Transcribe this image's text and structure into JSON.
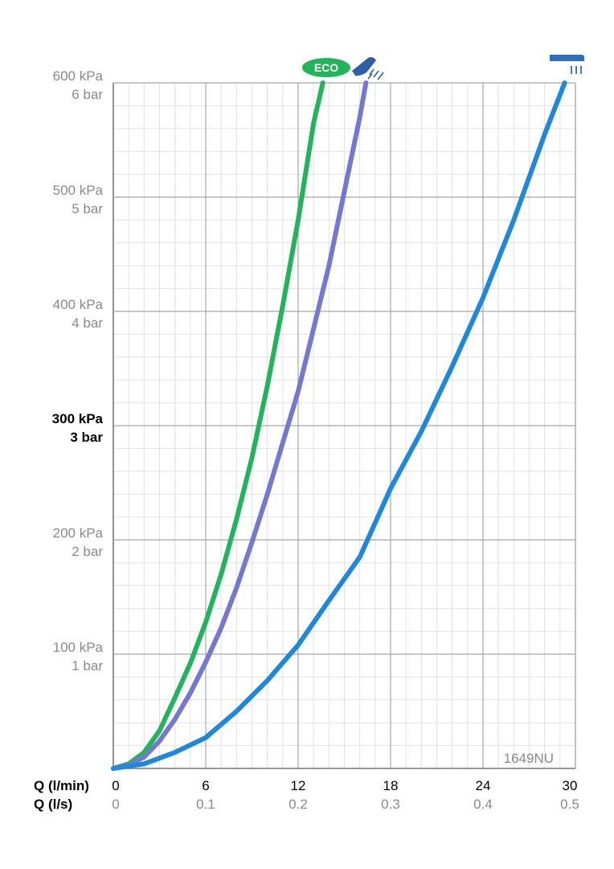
{
  "chart_data": {
    "type": "line",
    "product_code": "1649NU",
    "x_axis": {
      "label_primary": "Q (l/min)",
      "label_secondary": "Q (l/s)",
      "ticks_primary": [
        "0",
        "6",
        "12",
        "18",
        "24",
        "30"
      ],
      "ticks_secondary": [
        "0",
        "0.1",
        "0.2",
        "0.3",
        "0.4",
        "0.5"
      ],
      "range": [
        0,
        30
      ]
    },
    "y_axis": {
      "ticks_kpa": [
        "600 kPa",
        "500 kPa",
        "400 kPa",
        "300 kPa",
        "200 kPa",
        "100 kPa"
      ],
      "ticks_bar": [
        "6 bar",
        "5 bar",
        "4 bar",
        "3 bar",
        "2 bar",
        "1 bar"
      ],
      "highlight_tick": "300 kPa",
      "range": [
        0,
        600
      ]
    },
    "grid": true,
    "series": [
      {
        "icon": "eco-badge-icon",
        "icon_text": "ECO",
        "color": "#22b45a",
        "x": [
          0,
          1,
          2,
          3,
          4,
          5,
          6,
          7,
          8,
          9,
          10,
          11,
          12,
          13,
          13.6
        ],
        "y": [
          0,
          4,
          14,
          33,
          62,
          92,
          128,
          170,
          218,
          272,
          335,
          405,
          480,
          565,
          600
        ]
      },
      {
        "icon": "shower-head-spray-icon",
        "color": "#7478d2",
        "x": [
          0,
          1,
          2,
          3,
          4,
          5,
          6,
          7,
          8,
          9,
          10,
          11,
          12,
          13,
          14,
          15,
          16,
          16.4
        ],
        "y": [
          0,
          3,
          10,
          24,
          43,
          66,
          93,
          123,
          158,
          198,
          240,
          285,
          330,
          385,
          440,
          505,
          570,
          600
        ]
      },
      {
        "icon": "overhead-shower-icon",
        "color": "#1e88dc",
        "x": [
          0,
          2,
          4,
          6,
          8,
          10,
          12,
          14,
          16,
          18,
          20,
          22,
          24,
          26,
          28,
          29.3
        ],
        "y": [
          0,
          4,
          14,
          27,
          50,
          77,
          108,
          147,
          185,
          245,
          295,
          352,
          412,
          480,
          555,
          600
        ]
      }
    ]
  }
}
